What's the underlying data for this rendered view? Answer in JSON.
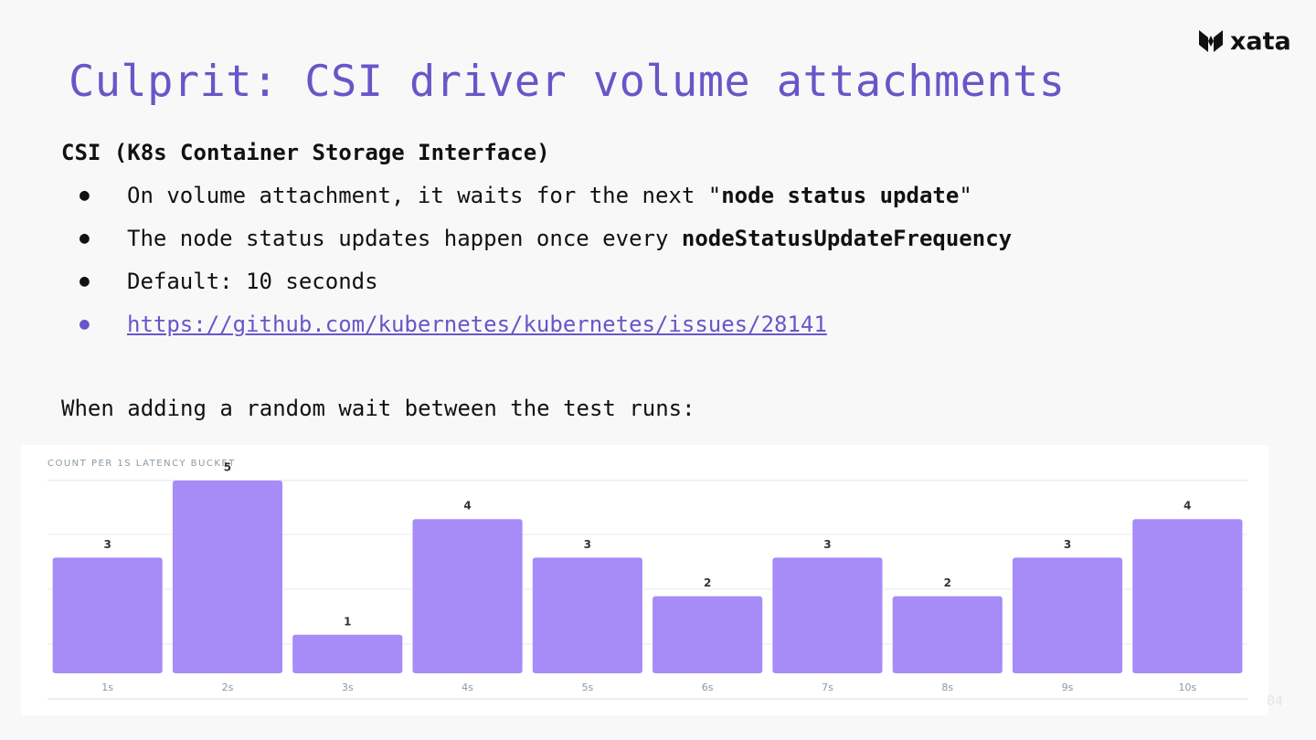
{
  "logo": "xata",
  "title": "Culprit: CSI driver volume attachments",
  "heading": "CSI (K8s Container Storage Interface)",
  "bullets": [
    [
      {
        "text": "On volume attachment, it waits for the next \""
      },
      {
        "text": "node status update",
        "bold": true
      },
      {
        "text": "\""
      }
    ],
    [
      {
        "text": "The node status updates happen once every "
      },
      {
        "text": "nodeStatusUpdateFrequency",
        "bold": true
      }
    ],
    [
      {
        "text": "Default: 10 seconds"
      }
    ],
    [
      {
        "text": "https://github.com/kubernetes/kubernetes/issues/28141",
        "link": true
      }
    ]
  ],
  "note": "When adding a random wait between the test runs:",
  "page_number": "04",
  "chart_data": {
    "type": "bar",
    "title": "COUNT PER 1S LATENCY BUCKET",
    "categories": [
      "1s",
      "2s",
      "3s",
      "4s",
      "5s",
      "6s",
      "7s",
      "8s",
      "9s",
      "10s"
    ],
    "values": [
      3,
      5,
      1,
      4,
      3,
      2,
      3,
      2,
      3,
      4
    ],
    "color": "#a78bf7",
    "ylim": [
      0,
      5
    ]
  }
}
